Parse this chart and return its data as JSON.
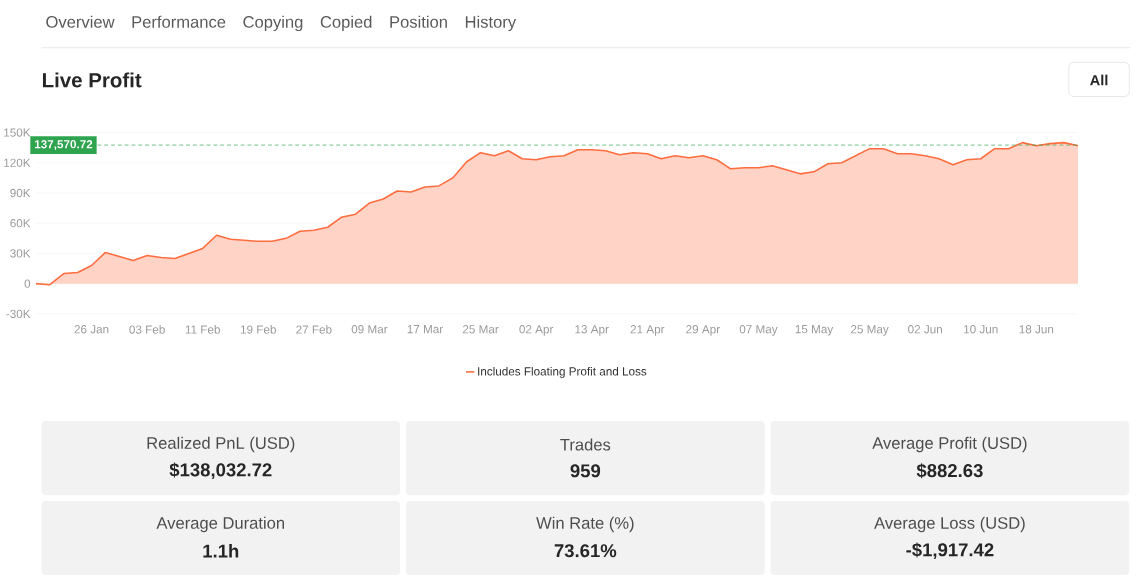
{
  "chart_data": [
    {
      "type": "other",
      "annotations": [
        "Overview",
        "Performance",
        "Copying",
        "Copied",
        "Position",
        "History",
        "All"
      ]
    },
    {
      "type": "area",
      "title": "Live Profit",
      "categories": [
        null,
        null,
        null,
        null,
        "26 Jan",
        null,
        null,
        null,
        "03 Feb",
        null,
        null,
        null,
        "11 Feb",
        null,
        null,
        null,
        "19 Feb",
        null,
        null,
        null,
        "27 Feb",
        null,
        null,
        null,
        "09 Mar",
        null,
        null,
        null,
        "17 Mar",
        null,
        null,
        null,
        "25 Mar",
        null,
        null,
        null,
        "02 Apr",
        null,
        null,
        null,
        "13 Apr",
        null,
        null,
        null,
        "21 Apr",
        null,
        null,
        null,
        "29 Apr",
        null,
        null,
        null,
        "07 May",
        null,
        null,
        null,
        "15 May",
        null,
        null,
        null,
        "25 May",
        null,
        null,
        null,
        "02 Jun",
        null,
        null,
        null,
        "10 Jun",
        null,
        null,
        null,
        "18 Jun",
        null,
        null,
        null
      ],
      "series": [
        {
          "name": "Includes Floating Profit and Loss",
          "color": "#ff6d3f",
          "values": [
            0,
            -1000,
            10000,
            11000,
            18000,
            31000,
            27000,
            23000,
            28000,
            26000,
            25000,
            30000,
            35000,
            48000,
            44000,
            43000,
            42000,
            42000,
            45000,
            52000,
            53000,
            56000,
            66000,
            69000,
            80000,
            84000,
            92000,
            91000,
            96000,
            97000,
            105000,
            121000,
            130000,
            127000,
            132000,
            124000,
            123000,
            126000,
            127000,
            133000,
            133000,
            132000,
            128000,
            130000,
            129000,
            124000,
            127000,
            125000,
            127000,
            123000,
            114000,
            115000,
            115000,
            117000,
            113000,
            109000,
            111000,
            119000,
            120000,
            127000,
            134000,
            134000,
            129000,
            129000,
            127000,
            124000,
            118000,
            123000,
            124000,
            134000,
            134000,
            140000,
            137000,
            139000,
            140000,
            137000
          ]
        }
      ],
      "ylim": [
        -30000,
        150000
      ],
      "yticks": [
        {
          "value": -30000,
          "label": "-30K"
        },
        {
          "value": 0,
          "label": "0"
        },
        {
          "value": 30000,
          "label": "30K"
        },
        {
          "value": 60000,
          "label": "60K"
        },
        {
          "value": 90000,
          "label": "90K"
        },
        {
          "value": 120000,
          "label": "120K"
        },
        {
          "value": 150000,
          "label": "150K"
        }
      ],
      "grid": "y",
      "legend": "bottom",
      "ref_lines": [
        {
          "axis": "y",
          "value": 137570.72,
          "label": "137,570.72",
          "color": "#2ea44f",
          "line_style": "dashed"
        }
      ]
    },
    {
      "type": "other",
      "categories": [
        "Realized PnL (USD)",
        "Trades",
        "Average Profit (USD)",
        "Average Duration",
        "Win Rate (%)",
        "Average Loss (USD)"
      ],
      "value_labels": [
        "$138,032.72",
        "959",
        "$882.63",
        "1.1h",
        "73.61%",
        "-$1,917.42"
      ]
    }
  ]
}
